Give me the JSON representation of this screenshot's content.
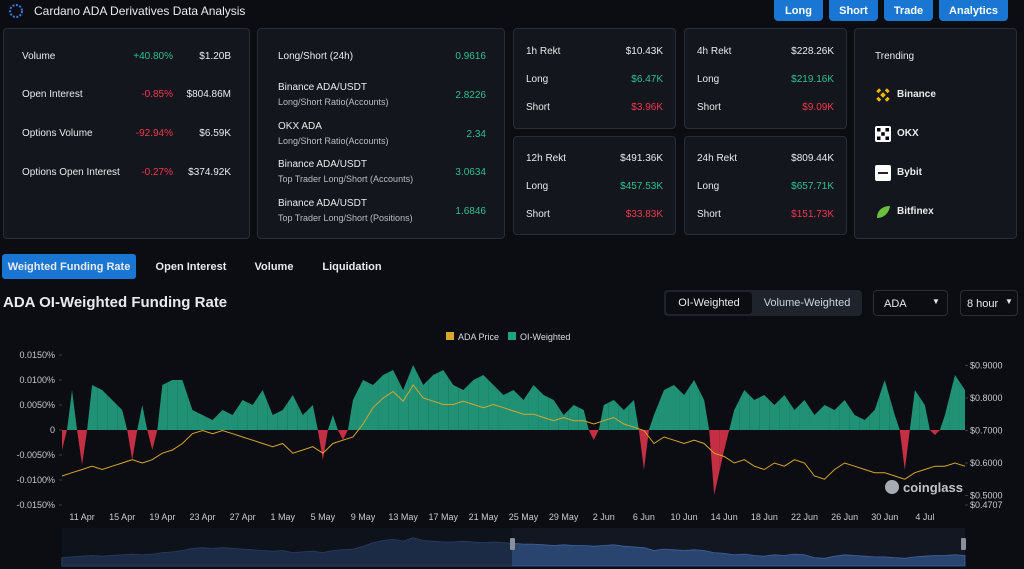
{
  "header": {
    "title": "Cardano ADA Derivatives Data Analysis",
    "buttons": [
      "Long",
      "Short",
      "Trade",
      "Analytics"
    ]
  },
  "summary": [
    {
      "label": "Volume",
      "change": "+40.80%",
      "value": "$1.20B"
    },
    {
      "label": "Open Interest",
      "change": "-0.85%",
      "value": "$804.86M"
    },
    {
      "label": "Options Volume",
      "change": "-92.94%",
      "value": "$6.59K"
    },
    {
      "label": "Options Open Interest",
      "change": "-0.27%",
      "value": "$374.92K"
    }
  ],
  "ratios": [
    {
      "name": "Long/Short (24h)",
      "value": "0.9616"
    },
    {
      "name": "Binance ADA/USDT",
      "sub": "Long/Short Ratio(Accounts)",
      "value": "2.8226"
    },
    {
      "name": "OKX ADA",
      "sub": "Long/Short Ratio(Accounts)",
      "value": "2.34"
    },
    {
      "name": "Binance ADA/USDT",
      "sub": "Top Trader Long/Short (Accounts)",
      "value": "3.0634"
    },
    {
      "name": "Binance ADA/USDT",
      "sub": "Top Trader Long/Short (Positions)",
      "value": "1.6846"
    }
  ],
  "rekt": [
    {
      "title": "1h Rekt",
      "total": "$10.43K",
      "long_label": "Long",
      "long": "$6.47K",
      "short_label": "Short",
      "short": "$3.96K"
    },
    {
      "title": "4h Rekt",
      "total": "$228.26K",
      "long_label": "Long",
      "long": "$219.16K",
      "short_label": "Short",
      "short": "$9.09K"
    },
    {
      "title": "12h Rekt",
      "total": "$491.36K",
      "long_label": "Long",
      "long": "$457.53K",
      "short_label": "Short",
      "short": "$33.83K"
    },
    {
      "title": "24h Rekt",
      "total": "$809.44K",
      "long_label": "Long",
      "long": "$657.71K",
      "short_label": "Short",
      "short": "$151.73K"
    }
  ],
  "trending": {
    "title": "Trending",
    "items": [
      "Binance",
      "OKX",
      "Bybit",
      "Bitfinex"
    ]
  },
  "tabs": [
    "Weighted Funding Rate",
    "Open Interest",
    "Volume",
    "Liquidation"
  ],
  "chart_data": {
    "type": "area",
    "title": "ADA OI-Weighted Funding Rate",
    "toggle": [
      "OI-Weighted",
      "Volume-Weighted"
    ],
    "selects": [
      "ADA",
      "8 hour"
    ],
    "watermark": "coinglass",
    "categories": [
      null,
      null,
      "11 Apr",
      null,
      null,
      null,
      "15 Apr",
      null,
      null,
      null,
      "19 Apr",
      null,
      null,
      null,
      "23 Apr",
      null,
      null,
      null,
      "27 Apr",
      null,
      null,
      null,
      "1 May",
      null,
      null,
      null,
      "5 May",
      null,
      null,
      null,
      "9 May",
      null,
      null,
      null,
      "13 May",
      null,
      null,
      null,
      "17 May",
      null,
      null,
      null,
      "21 May",
      null,
      null,
      null,
      "25 May",
      null,
      null,
      null,
      "29 May",
      null,
      null,
      null,
      "2 Jun",
      null,
      null,
      null,
      "6 Jun",
      null,
      null,
      null,
      "10 Jun",
      null,
      null,
      null,
      "14 Jun",
      null,
      null,
      null,
      "18 Jun",
      null,
      null,
      null,
      "22 Jun",
      null,
      null,
      null,
      "26 Jun",
      null,
      null,
      null,
      "30 Jun",
      null,
      null,
      null,
      "4 Jul",
      null,
      null,
      null,
      null
    ],
    "series": [
      {
        "name": "ADA Price",
        "color": "#d6a62e",
        "axis": "y2",
        "values": [
          0.56,
          0.57,
          0.58,
          0.59,
          0.58,
          0.59,
          0.6,
          0.61,
          0.6,
          0.61,
          0.63,
          0.64,
          0.66,
          0.69,
          0.7,
          0.69,
          0.7,
          0.69,
          0.68,
          0.67,
          0.66,
          0.65,
          0.66,
          0.63,
          0.64,
          0.65,
          0.63,
          0.66,
          0.67,
          0.68,
          0.72,
          0.77,
          0.8,
          0.82,
          0.79,
          0.84,
          0.8,
          0.79,
          0.78,
          0.78,
          0.79,
          0.78,
          0.77,
          0.78,
          0.77,
          0.76,
          0.75,
          0.75,
          0.74,
          0.73,
          0.74,
          0.73,
          0.73,
          0.72,
          0.73,
          0.74,
          0.72,
          0.71,
          0.7,
          0.66,
          0.68,
          0.67,
          0.66,
          0.67,
          0.66,
          0.63,
          0.62,
          0.6,
          0.61,
          0.59,
          0.58,
          0.6,
          0.59,
          0.61,
          0.6,
          0.56,
          0.55,
          0.58,
          0.6,
          0.59,
          0.58,
          0.57,
          0.57,
          0.56,
          0.55,
          0.57,
          0.58,
          0.59,
          0.59,
          0.6,
          0.59
        ]
      },
      {
        "name": "OI-Weighted",
        "color": "#22a07f",
        "negative_color": "#d8334a",
        "values": [
          -0.004,
          0.008,
          -0.007,
          0.009,
          0.008,
          0.006,
          0.004,
          -0.006,
          0.005,
          -0.004,
          0.009,
          0.01,
          0.01,
          0.004,
          0.003,
          0.002,
          0.004,
          0.003,
          0.006,
          0.005,
          0.008,
          0.003,
          0.004,
          0.007,
          0.003,
          0.005,
          -0.006,
          0.003,
          -0.002,
          0.006,
          0.01,
          0.009,
          0.011,
          0.012,
          0.008,
          0.013,
          0.009,
          0.011,
          0.012,
          0.009,
          0.008,
          0.01,
          0.011,
          0.009,
          0.007,
          0.008,
          0.006,
          0.009,
          0.007,
          0.006,
          0.003,
          0.005,
          0.004,
          -0.002,
          0.005,
          0.006,
          0.004,
          0.006,
          -0.008,
          0.003,
          0.008,
          0.009,
          0.007,
          0.01,
          0.006,
          -0.013,
          -0.004,
          0.004,
          0.008,
          0.006,
          0.007,
          0.005,
          0.007,
          0.004,
          0.006,
          0.003,
          0.005,
          0.004,
          0.006,
          0.003,
          0.002,
          0.004,
          0.01,
          0.003,
          -0.008,
          0.008,
          0.005,
          -0.001,
          0.003,
          0.011,
          0.008
        ]
      }
    ],
    "ylim": [
      -0.015,
      0.016
    ],
    "yticks": [
      {
        "value": 0.015,
        "label": "0.0150%"
      },
      {
        "value": 0.01,
        "label": "0.0100%"
      },
      {
        "value": 0.005,
        "label": "0.0050%"
      },
      0,
      {
        "value": -0.005,
        "label": "-0.0050%"
      },
      {
        "value": -0.01,
        "label": "-0.0100%"
      },
      {
        "value": -0.015,
        "label": "-0.0150%"
      }
    ],
    "y2lim": [
      0.4707,
      0.9477
    ],
    "y2ticks": [
      {
        "value": 0.9,
        "label": "$0.9000"
      },
      {
        "value": 0.8,
        "label": "$0.8000"
      },
      {
        "value": 0.7,
        "label": "$0.7000"
      },
      {
        "value": 0.6,
        "label": "$0.6000"
      },
      {
        "value": 0.5,
        "label": "$0.5000"
      },
      {
        "value": 0.4707,
        "label": "$0.4707"
      }
    ]
  }
}
